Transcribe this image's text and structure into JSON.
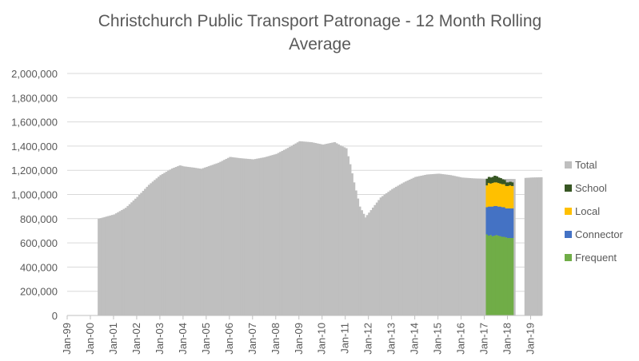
{
  "chart_data": {
    "type": "area",
    "stacked_subset": true,
    "title": "Christchurch Public Transport Patronage - 12 Month Rolling Average",
    "title_lines": [
      "Christchurch Public Transport Patronage - 12 Month Rolling",
      "Average"
    ],
    "xlabel": "",
    "ylabel": "",
    "ylim": [
      0,
      2000000
    ],
    "y_ticks": [
      0,
      200000,
      400000,
      600000,
      800000,
      1000000,
      1200000,
      1400000,
      1600000,
      1800000,
      2000000
    ],
    "y_tick_labels": [
      "0",
      "200,000",
      "400,000",
      "600,000",
      "800,000",
      "1,000,000",
      "1,200,000",
      "1,400,000",
      "1,600,000",
      "1,800,000",
      "2,000,000"
    ],
    "x_start": "Jan-99",
    "x_end": "Jul-19",
    "x_tick_labels": [
      "Jan-99",
      "Jan-00",
      "Jan-01",
      "Jan-02",
      "Jan-03",
      "Jan-04",
      "Jan-05",
      "Jan-06",
      "Jan-07",
      "Jan-08",
      "Jan-09",
      "Jan-10",
      "Jan-11",
      "Jan-12",
      "Jan-13",
      "Jan-14",
      "Jan-15",
      "Jan-16",
      "Jan-17",
      "Jan-18",
      "Jan-19"
    ],
    "grid": true,
    "legend_position": "right",
    "colors": {
      "total": "#bfbfbf",
      "school": "#375623",
      "local": "#ffc000",
      "connector": "#4472c4",
      "frequent": "#70ad47",
      "grid": "#d9d9d9",
      "axis": "#bfbfbf",
      "text": "#595959",
      "title": "#595959"
    },
    "legend": [
      {
        "key": "total",
        "label": "Total"
      },
      {
        "key": "school",
        "label": "School"
      },
      {
        "key": "local",
        "label": "Local"
      },
      {
        "key": "connector",
        "label": "Connector"
      },
      {
        "key": "frequent",
        "label": "Frequent"
      }
    ],
    "total_start": "May-00",
    "total_end": "Jun-19",
    "total_gap_start": "Apr-18",
    "total_gap_end": "Oct-18",
    "total_knots": [
      [
        "May-00",
        800000
      ],
      [
        "Jan-01",
        835000
      ],
      [
        "Jul-01",
        890000
      ],
      [
        "Jan-02",
        980000
      ],
      [
        "Jul-02",
        1080000
      ],
      [
        "Jan-03",
        1160000
      ],
      [
        "Jul-03",
        1215000
      ],
      [
        "Nov-03",
        1240000
      ],
      [
        "Jan-04",
        1232000
      ],
      [
        "Jun-04",
        1222000
      ],
      [
        "Oct-04",
        1212000
      ],
      [
        "Jan-05",
        1228000
      ],
      [
        "Jul-05",
        1262000
      ],
      [
        "Jan-06",
        1310000
      ],
      [
        "Jun-06",
        1300000
      ],
      [
        "Jan-07",
        1290000
      ],
      [
        "Jul-07",
        1308000
      ],
      [
        "Jan-08",
        1335000
      ],
      [
        "Jul-08",
        1385000
      ],
      [
        "Jan-09",
        1440000
      ],
      [
        "Jul-09",
        1432000
      ],
      [
        "Jan-10",
        1412000
      ],
      [
        "Jul-10",
        1432000
      ],
      [
        "Oct-10",
        1405000
      ],
      [
        "Jan-11",
        1382000
      ],
      [
        "Mar-11",
        1250000
      ],
      [
        "May-11",
        1100000
      ],
      [
        "Aug-11",
        900000
      ],
      [
        "Oct-11",
        840000
      ],
      [
        "Nov-11",
        810000
      ],
      [
        "Jan-12",
        850000
      ],
      [
        "Jul-12",
        975000
      ],
      [
        "Jan-13",
        1045000
      ],
      [
        "Jul-13",
        1100000
      ],
      [
        "Jan-14",
        1145000
      ],
      [
        "Jul-14",
        1165000
      ],
      [
        "Jan-15",
        1172000
      ],
      [
        "Jul-15",
        1160000
      ],
      [
        "Jan-16",
        1140000
      ],
      [
        "Jul-16",
        1133000
      ],
      [
        "Jan-17",
        1130000
      ],
      [
        "Apr-18",
        1128000
      ],
      [
        "Oct-18",
        1137000
      ],
      [
        "Jan-19",
        1140000
      ],
      [
        "Jun-19",
        1142000
      ]
    ],
    "breakdown_start": "Feb-17",
    "breakdown_end": "Mar-18",
    "breakdown": {
      "months": [
        "Feb-17",
        "Mar-17",
        "Apr-17",
        "May-17",
        "Jun-17",
        "Jul-17",
        "Aug-17",
        "Sep-17",
        "Oct-17",
        "Nov-17",
        "Dec-17",
        "Jan-18",
        "Feb-18",
        "Mar-18"
      ],
      "frequent": [
        670000,
        660000,
        665000,
        655000,
        660000,
        665000,
        660000,
        655000,
        650000,
        650000,
        645000,
        640000,
        640000,
        640000
      ],
      "connector": [
        225000,
        240000,
        235000,
        245000,
        245000,
        240000,
        240000,
        245000,
        245000,
        245000,
        240000,
        245000,
        245000,
        245000
      ],
      "local": [
        180000,
        195000,
        190000,
        195000,
        195000,
        195000,
        195000,
        190000,
        190000,
        190000,
        185000,
        185000,
        190000,
        185000
      ],
      "school": [
        55000,
        50000,
        50000,
        50000,
        55000,
        50000,
        45000,
        45000,
        40000,
        35000,
        30000,
        30000,
        30000,
        30000
      ]
    }
  }
}
